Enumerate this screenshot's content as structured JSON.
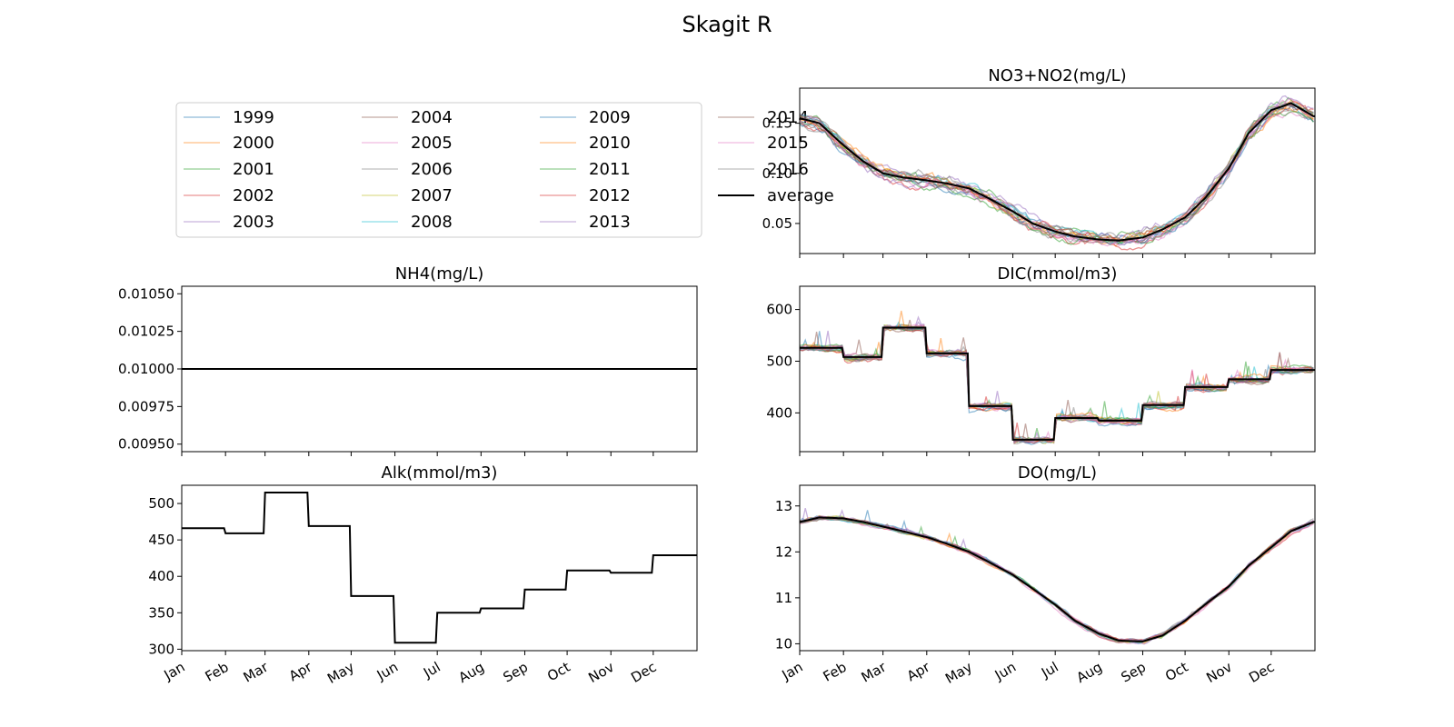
{
  "figure": {
    "title": "Skagit R"
  },
  "months": [
    "Jan",
    "Feb",
    "Mar",
    "Apr",
    "May",
    "Jun",
    "Jul",
    "Aug",
    "Sep",
    "Oct",
    "Nov",
    "Dec"
  ],
  "chart_data": [
    {
      "id": "no3",
      "type": "line",
      "title": "NO3+NO2(mg/L)",
      "ylim": [
        0.02,
        0.185
      ],
      "yticks": [
        0.05,
        0.1,
        0.15
      ],
      "ytick_labels": [
        "0.05",
        "0.10",
        "0.15"
      ],
      "x_tick_labels_visible": false,
      "average": {
        "name": "average",
        "x": [
          "Jan 1",
          "Jan 15",
          "Feb 1",
          "Feb 15",
          "Mar 1",
          "Mar 15",
          "Apr 1",
          "Apr 15",
          "May 1",
          "May 15",
          "Jun 1",
          "Jun 15",
          "Jul 1",
          "Jul 15",
          "Aug 1",
          "Aug 15",
          "Sep 1",
          "Sep 15",
          "Oct 1",
          "Oct 15",
          "Nov 1",
          "Nov 15",
          "Dec 1",
          "Dec 15",
          "Dec 31"
        ],
        "values": [
          0.155,
          0.15,
          0.128,
          0.112,
          0.1,
          0.096,
          0.093,
          0.09,
          0.085,
          0.075,
          0.062,
          0.05,
          0.042,
          0.037,
          0.034,
          0.033,
          0.036,
          0.044,
          0.056,
          0.075,
          0.105,
          0.14,
          0.163,
          0.17,
          0.157
        ]
      }
    },
    {
      "id": "nh4",
      "type": "line",
      "title": "NH4(mg/L)",
      "ylim": [
        0.00945,
        0.01055
      ],
      "yticks": [
        0.0095,
        0.00975,
        0.01,
        0.01025,
        0.0105
      ],
      "ytick_labels": [
        "0.00950",
        "0.00975",
        "0.01000",
        "0.01025",
        "0.01050"
      ],
      "x_tick_labels_visible": false,
      "average": {
        "name": "average",
        "x": [
          "Jan 1",
          "Dec 31"
        ],
        "values": [
          0.01,
          0.01
        ]
      }
    },
    {
      "id": "dic",
      "type": "line",
      "title": "DIC(mmol/m3)",
      "ylim": [
        325,
        645
      ],
      "yticks": [
        400,
        500,
        600
      ],
      "ytick_labels": [
        "400",
        "500",
        "600"
      ],
      "x_tick_labels_visible": false,
      "monthly_levels": [
        526,
        508,
        565,
        515,
        413,
        348,
        390,
        385,
        415,
        450,
        465,
        483
      ]
    },
    {
      "id": "alk",
      "type": "line",
      "title": "Alk(mmol/m3)",
      "ylim": [
        298,
        525
      ],
      "yticks": [
        300,
        350,
        400,
        450,
        500
      ],
      "ytick_labels": [
        "300",
        "350",
        "400",
        "450",
        "500"
      ],
      "x_tick_labels_visible": true,
      "monthly_levels": [
        466,
        459,
        515,
        469,
        373,
        309,
        350,
        356,
        382,
        408,
        405,
        429
      ]
    },
    {
      "id": "do",
      "type": "line",
      "title": "DO(mg/L)",
      "ylim": [
        9.85,
        13.45
      ],
      "yticks": [
        10,
        11,
        12,
        13
      ],
      "ytick_labels": [
        "10",
        "11",
        "12",
        "13"
      ],
      "x_tick_labels_visible": true,
      "average": {
        "name": "average",
        "x": [
          "Jan 1",
          "Jan 15",
          "Feb 1",
          "Feb 15",
          "Mar 1",
          "Mar 15",
          "Apr 1",
          "Apr 15",
          "May 1",
          "May 15",
          "Jun 1",
          "Jun 15",
          "Jul 1",
          "Jul 15",
          "Aug 1",
          "Aug 15",
          "Sep 1",
          "Sep 15",
          "Oct 1",
          "Oct 15",
          "Nov 1",
          "Nov 15",
          "Dec 1",
          "Dec 15",
          "Dec 31"
        ],
        "values": [
          12.65,
          12.75,
          12.73,
          12.65,
          12.55,
          12.45,
          12.32,
          12.18,
          12.0,
          11.78,
          11.5,
          11.2,
          10.85,
          10.5,
          10.22,
          10.07,
          10.05,
          10.18,
          10.5,
          10.85,
          11.25,
          11.7,
          12.1,
          12.45,
          12.65
        ]
      }
    }
  ],
  "legend": {
    "placement": "upper-left panel",
    "entries": [
      {
        "label": "1999",
        "color": "#1f77b4"
      },
      {
        "label": "2000",
        "color": "#ff7f0e"
      },
      {
        "label": "2001",
        "color": "#2ca02c"
      },
      {
        "label": "2002",
        "color": "#d62728"
      },
      {
        "label": "2003",
        "color": "#9467bd"
      },
      {
        "label": "2004",
        "color": "#8c564b"
      },
      {
        "label": "2005",
        "color": "#e377c2"
      },
      {
        "label": "2006",
        "color": "#7f7f7f"
      },
      {
        "label": "2007",
        "color": "#bcbd22"
      },
      {
        "label": "2008",
        "color": "#17becf"
      },
      {
        "label": "2009",
        "color": "#1f77b4"
      },
      {
        "label": "2010",
        "color": "#ff7f0e"
      },
      {
        "label": "2011",
        "color": "#2ca02c"
      },
      {
        "label": "2012",
        "color": "#d62728"
      },
      {
        "label": "2013",
        "color": "#9467bd"
      },
      {
        "label": "2014",
        "color": "#8c564b"
      },
      {
        "label": "2015",
        "color": "#e377c2"
      },
      {
        "label": "2016",
        "color": "#7f7f7f"
      },
      {
        "label": "average",
        "color": "#000000"
      }
    ]
  },
  "style": {
    "average_color": "#000000"
  }
}
